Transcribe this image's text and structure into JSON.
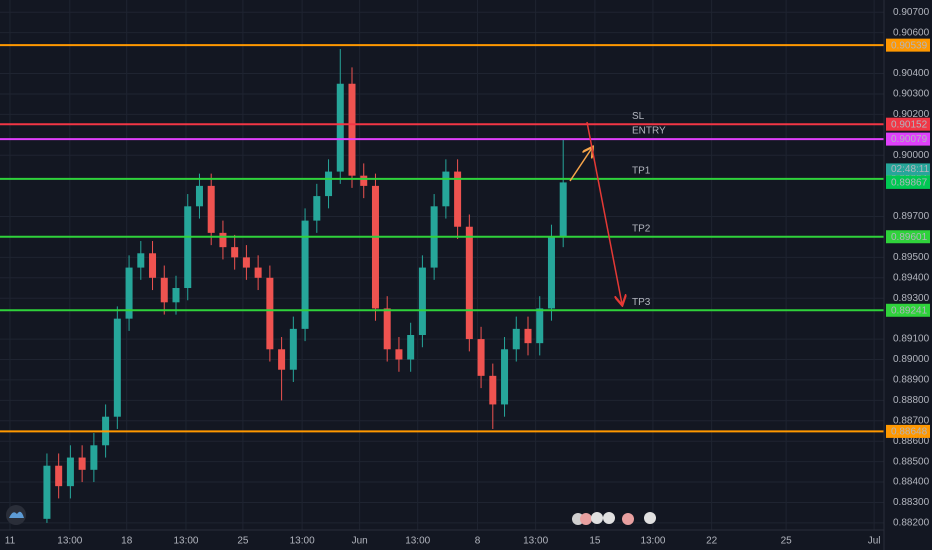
{
  "chart_data": {
    "type": "candlestick",
    "x": [
      8,
      10,
      12,
      14,
      16,
      18,
      20,
      22,
      24,
      26,
      28,
      30,
      32,
      34,
      36,
      38,
      40,
      42,
      44,
      46,
      48,
      50,
      52,
      54,
      56,
      58,
      60,
      62,
      64,
      66,
      68,
      70,
      72,
      74,
      76,
      78,
      80,
      82,
      84,
      86,
      88,
      90,
      92,
      94,
      96
    ],
    "open": [
      0.8822,
      0.8848,
      0.8838,
      0.8852,
      0.8846,
      0.8858,
      0.8872,
      0.892,
      0.8945,
      0.8952,
      0.894,
      0.8928,
      0.8935,
      0.8975,
      0.8985,
      0.8962,
      0.8955,
      0.895,
      0.8945,
      0.894,
      0.8905,
      0.8895,
      0.8915,
      0.8968,
      0.898,
      0.8992,
      0.9035,
      0.899,
      0.8985,
      0.8925,
      0.8905,
      0.89,
      0.8912,
      0.8945,
      0.8975,
      0.8992,
      0.8965,
      0.891,
      0.8892,
      0.8878,
      0.8905,
      0.8915,
      0.8908,
      0.8925,
      0.896
    ],
    "high": [
      0.8854,
      0.8854,
      0.8858,
      0.8858,
      0.8864,
      0.8878,
      0.8926,
      0.8951,
      0.8958,
      0.8958,
      0.8946,
      0.8941,
      0.8981,
      0.8991,
      0.8991,
      0.8968,
      0.8961,
      0.8956,
      0.8951,
      0.8946,
      0.8911,
      0.8921,
      0.8974,
      0.8986,
      0.8998,
      0.9052,
      0.9043,
      0.8996,
      0.8991,
      0.8931,
      0.8911,
      0.8918,
      0.8951,
      0.8981,
      0.8998,
      0.8998,
      0.8971,
      0.8916,
      0.8898,
      0.8911,
      0.8921,
      0.8921,
      0.8931,
      0.8966,
      0.9008
    ],
    "low": [
      0.882,
      0.8832,
      0.8832,
      0.884,
      0.884,
      0.8852,
      0.8866,
      0.8914,
      0.8939,
      0.8934,
      0.8922,
      0.8922,
      0.8929,
      0.8969,
      0.8956,
      0.8949,
      0.8944,
      0.8939,
      0.8934,
      0.8899,
      0.888,
      0.8889,
      0.8909,
      0.8962,
      0.8974,
      0.8986,
      0.8984,
      0.8979,
      0.8919,
      0.8899,
      0.8894,
      0.8894,
      0.8906,
      0.8939,
      0.8969,
      0.8959,
      0.8904,
      0.8886,
      0.8866,
      0.8872,
      0.8899,
      0.8902,
      0.8902,
      0.8919,
      0.8955
    ],
    "close": [
      0.8848,
      0.8838,
      0.8852,
      0.8846,
      0.8858,
      0.8872,
      0.892,
      0.8945,
      0.8952,
      0.894,
      0.8928,
      0.8935,
      0.8975,
      0.8985,
      0.8962,
      0.8955,
      0.895,
      0.8945,
      0.894,
      0.8905,
      0.8895,
      0.8915,
      0.8968,
      0.898,
      0.8992,
      0.9035,
      0.899,
      0.8985,
      0.8925,
      0.8905,
      0.89,
      0.8912,
      0.8945,
      0.8975,
      0.8992,
      0.8965,
      0.891,
      0.8892,
      0.8878,
      0.8905,
      0.8915,
      0.8908,
      0.8925,
      0.896,
      0.89867
    ],
    "up_color": "#26a69a",
    "down_color": "#ef5350",
    "xlim": [
      0,
      150
    ],
    "ylim": [
      0.8818,
      0.9076
    ],
    "xticks": [
      {
        "value": 1.7,
        "label": "11"
      },
      {
        "value": 11.9,
        "label": "13:00"
      },
      {
        "value": 21.6,
        "label": "18"
      },
      {
        "value": 31.7,
        "label": "13:00"
      },
      {
        "value": 41.4,
        "label": "25"
      },
      {
        "value": 51.5,
        "label": "13:00"
      },
      {
        "value": 61.3,
        "label": "Jun"
      },
      {
        "value": 71.2,
        "label": "13:00"
      },
      {
        "value": 81.4,
        "label": "8"
      },
      {
        "value": 91.3,
        "label": "13:00"
      },
      {
        "value": 101.4,
        "label": "15"
      },
      {
        "value": 111.3,
        "label": "13:00"
      },
      {
        "value": 121.3,
        "label": "22"
      },
      {
        "value": 134,
        "label": "25"
      },
      {
        "value": 149,
        "label": "Jul"
      }
    ],
    "yticks": [
      {
        "value": 0.907,
        "label": "0.90700"
      },
      {
        "value": 0.906,
        "label": "0.90600"
      },
      {
        "value": 0.904,
        "label": "0.90400"
      },
      {
        "value": 0.903,
        "label": "0.90300"
      },
      {
        "value": 0.902,
        "label": "0.90200"
      },
      {
        "value": 0.9,
        "label": "0.90000"
      },
      {
        "value": 0.897,
        "label": "0.89700"
      },
      {
        "value": 0.895,
        "label": "0.89500"
      },
      {
        "value": 0.894,
        "label": "0.89400"
      },
      {
        "value": 0.893,
        "label": "0.89300"
      },
      {
        "value": 0.891,
        "label": "0.89100"
      },
      {
        "value": 0.89,
        "label": "0.89000"
      },
      {
        "value": 0.889,
        "label": "0.88900"
      },
      {
        "value": 0.888,
        "label": "0.88800"
      },
      {
        "value": 0.887,
        "label": "0.88700"
      },
      {
        "value": 0.886,
        "label": "0.88600"
      },
      {
        "value": 0.885,
        "label": "0.88500"
      },
      {
        "value": 0.884,
        "label": "0.88400"
      },
      {
        "value": 0.883,
        "label": "0.88300"
      },
      {
        "value": 0.882,
        "label": "0.88200"
      }
    ],
    "grid": true,
    "levels": [
      {
        "value": 0.90539,
        "color": "#ff9800"
      },
      {
        "value": 0.90152,
        "color": "#f23645",
        "label": "SL"
      },
      {
        "value": 0.90079,
        "color": "#e040fb",
        "label": "ENTRY"
      },
      {
        "value": 0.89884,
        "color": "#2fd23b",
        "label": "TP1"
      },
      {
        "value": 0.89601,
        "color": "#2fd23b",
        "label": "TP2"
      },
      {
        "value": 0.89241,
        "color": "#2fd23b",
        "label": "TP3"
      },
      {
        "value": 0.88648,
        "color": "#ff9800"
      }
    ],
    "last_price": 0.89867,
    "countdown": "02:48:11"
  }
}
